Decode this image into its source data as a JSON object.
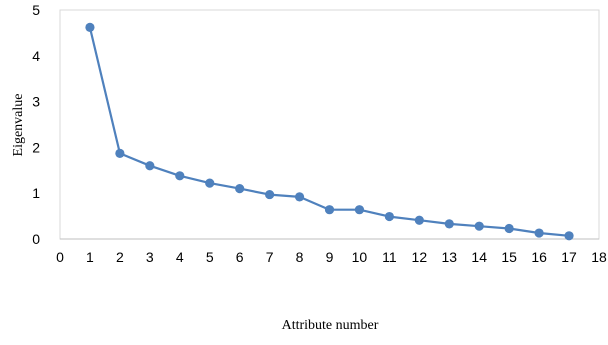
{
  "chart_data": {
    "type": "line",
    "title": "",
    "xlabel": "Attribute number",
    "ylabel": "Eigenvalue",
    "xlim": [
      0,
      18
    ],
    "ylim": [
      0,
      5
    ],
    "x_ticks": [
      0,
      1,
      2,
      3,
      4,
      5,
      6,
      7,
      8,
      9,
      10,
      11,
      12,
      13,
      14,
      15,
      16,
      17,
      18
    ],
    "y_ticks": [
      0,
      1,
      2,
      3,
      4,
      5
    ],
    "grid": false,
    "legend": "none",
    "series": [
      {
        "color": "#4f81bd",
        "marker": "circle",
        "x": [
          1,
          2,
          3,
          4,
          5,
          6,
          7,
          8,
          9,
          10,
          11,
          12,
          13,
          14,
          15,
          16,
          17
        ],
        "y": [
          4.62,
          1.87,
          1.6,
          1.38,
          1.22,
          1.1,
          0.97,
          0.92,
          0.64,
          0.64,
          0.49,
          0.41,
          0.33,
          0.28,
          0.23,
          0.13,
          0.07
        ]
      }
    ]
  }
}
